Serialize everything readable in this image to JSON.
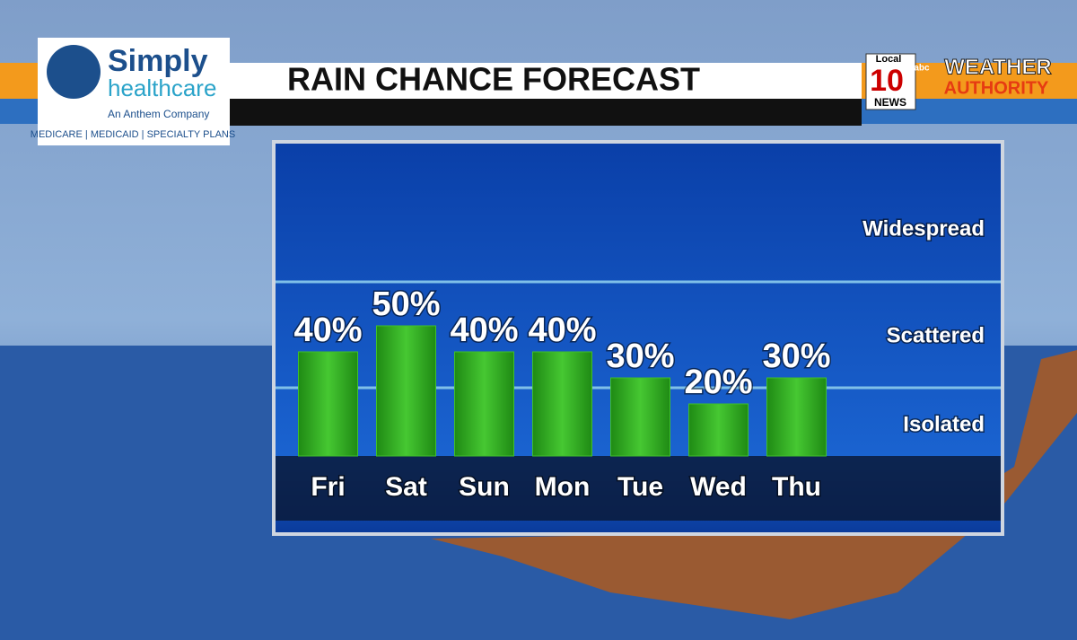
{
  "branding": {
    "sponsor_name": "Simply",
    "sponsor_name_2": "healthcare",
    "sponsor_tagline": "An Anthem Company",
    "sponsor_plans": "MEDICARE | MEDICAID | SPECIALTY PLANS",
    "station_local": "Local",
    "station_number": "10",
    "station_network": "abc",
    "station_news": "NEWS",
    "brand_1": "WEATHER",
    "brand_2": "AUTHORITY"
  },
  "chart_data": {
    "type": "bar",
    "title": "RAIN CHANCE FORECAST",
    "categories": [
      "Fri",
      "Sat",
      "Sun",
      "Mon",
      "Tue",
      "Wed",
      "Thu"
    ],
    "values": [
      40,
      50,
      40,
      40,
      30,
      20,
      30
    ],
    "value_labels": [
      "40%",
      "50%",
      "40%",
      "40%",
      "30%",
      "20%",
      "30%"
    ],
    "color": "#3fbf2a",
    "ylim": [
      0,
      120
    ],
    "bands": [
      "Isolated",
      "Scattered",
      "Widespread"
    ]
  }
}
